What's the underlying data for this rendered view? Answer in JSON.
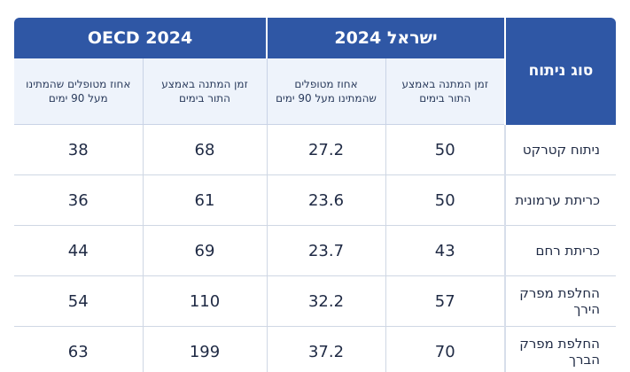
{
  "table": {
    "type_header": "סוג ניתוח",
    "groups": [
      {
        "label": "ישראל 2024"
      },
      {
        "label": "OECD 2024"
      }
    ],
    "subheaders": [
      "זמן המתנה באמצע התור בימים",
      "אחוז מטופלים שהמתינו מעל 90 ימים",
      "זמן המתנה באמצע התור בימים",
      "אחוז מטופלים שהמתינו מעל 90 ימים"
    ],
    "rows": [
      {
        "label": "ניתוח קטרקט",
        "values": [
          "50",
          "27.2",
          "68",
          "38"
        ]
      },
      {
        "label": "כריתת ערמונית",
        "values": [
          "50",
          "23.6",
          "61",
          "36"
        ]
      },
      {
        "label": "כריתת רחם",
        "values": [
          "43",
          "23.7",
          "69",
          "44"
        ]
      },
      {
        "label": "החלפת מפרק הירך",
        "values": [
          "57",
          "32.2",
          "110",
          "54"
        ]
      },
      {
        "label": "החלפת מפרק הברך",
        "values": [
          "70",
          "37.2",
          "199",
          "63"
        ]
      }
    ]
  }
}
